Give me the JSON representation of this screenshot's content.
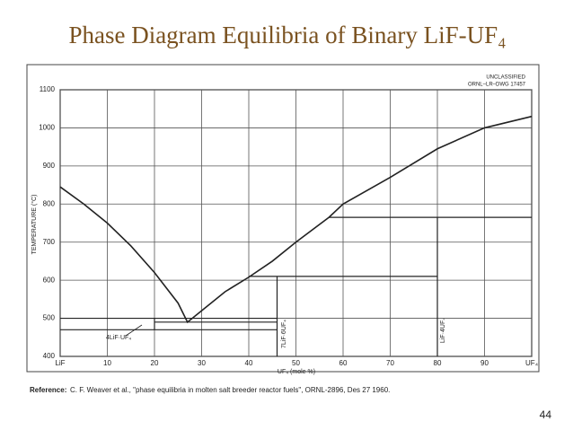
{
  "chart_data": {
    "type": "line",
    "title": "Phase Diagram Equilibria of Binary LiF-UF₄",
    "x_label": "UF₄ (mole %)",
    "y_label": "TEMPERATURE (°C)",
    "annotations": [
      "UNCLASSIFIED",
      "ORNL–LR–DWG 17457",
      "4LiF·UF₄",
      "7LiF·6UF₄",
      "LiF·4UF₄"
    ],
    "xlim": [
      0,
      100
    ],
    "ylim": [
      400,
      1100
    ],
    "xticks": [
      {
        "value": 0,
        "label": "LiF"
      },
      10,
      20,
      30,
      40,
      50,
      60,
      70,
      80,
      90,
      {
        "value": 100,
        "label": "UF₄"
      }
    ],
    "yticks": [
      400,
      500,
      600,
      700,
      800,
      900,
      1000,
      1100
    ],
    "grid": true,
    "color": "#222222",
    "liquidus": {
      "x": [
        0,
        5,
        10,
        15,
        20,
        25,
        27,
        30,
        35,
        40,
        45,
        50,
        57,
        60,
        70,
        80,
        90,
        100
      ],
      "values": [
        845,
        800,
        750,
        690,
        620,
        540,
        490,
        520,
        570,
        608,
        650,
        700,
        765,
        800,
        870,
        945,
        1000,
        1030
      ]
    },
    "segments": [
      {
        "x": [
          0,
          46
        ],
        "values": [
          500,
          500
        ]
      },
      {
        "x": [
          20,
          46
        ],
        "values": [
          490,
          490
        ]
      },
      {
        "x": [
          0,
          46
        ],
        "values": [
          470,
          470
        ]
      },
      {
        "x": [
          20,
          20
        ],
        "values": [
          470,
          500
        ]
      },
      {
        "x": [
          46,
          46
        ],
        "values": [
          400,
          610
        ]
      },
      {
        "x": [
          40,
          80
        ],
        "values": [
          610,
          610
        ]
      },
      {
        "x": [
          80,
          80
        ],
        "values": [
          400,
          765
        ]
      },
      {
        "x": [
          57,
          100
        ],
        "values": [
          765,
          765
        ]
      }
    ]
  },
  "reference": {
    "label": "Reference:",
    "text": "C. F. Weaver et al., \"phase equilibria in molten salt breeder reactor fuels\", ORNL-2896, Des 27 1960."
  },
  "page_number": "44"
}
